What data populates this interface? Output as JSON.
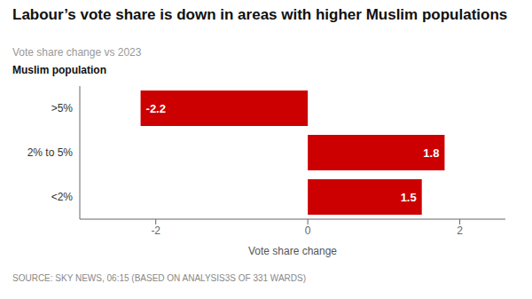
{
  "chart_data": {
    "type": "bar",
    "orientation": "horizontal",
    "title": "Labour’s vote share is down in areas with higher Muslim populations",
    "subtitle": "Vote share change vs 2023",
    "ylabel": "Muslim population",
    "xlabel": "Vote share change",
    "source": "SOURCE: SKY NEWS, 06:15 (BASED ON ANALYSIS3S OF 331 WARDS)",
    "categories": [
      ">5%",
      "2% to 5%",
      "<2%"
    ],
    "values": [
      -2.2,
      1.8,
      1.5
    ],
    "color": "#cc0000",
    "xlim": [
      -3.0,
      2.6
    ],
    "xticks": [
      -2,
      0,
      2
    ],
    "grid": false,
    "data_labels": true
  }
}
